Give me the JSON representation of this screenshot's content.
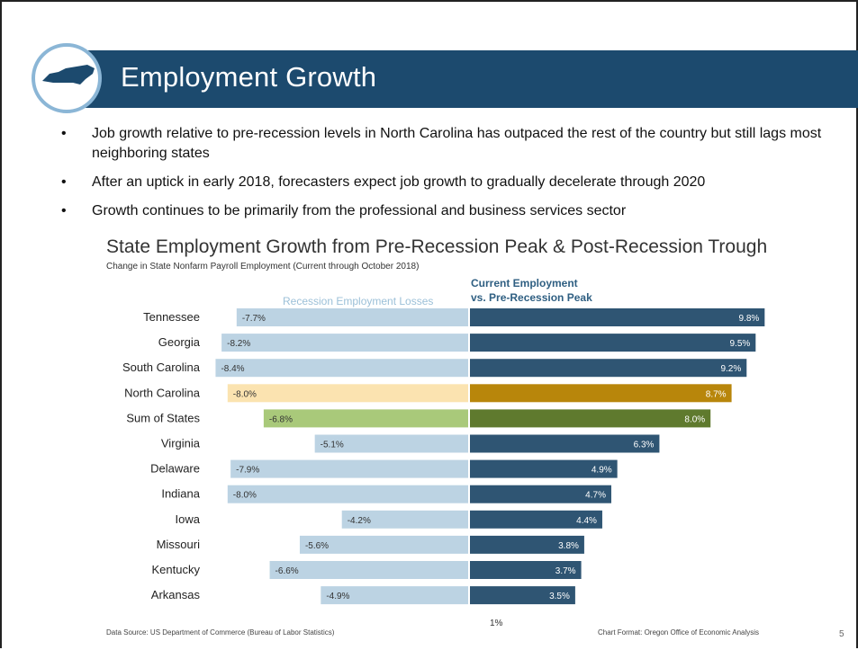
{
  "slide": {
    "title": "Employment Growth",
    "page_number": "5",
    "bullets": [
      "Job growth relative to pre-recession levels in North Carolina has outpaced the rest of the country but still lags most neighboring states",
      "After an uptick in early 2018, forecasters expect job growth to gradually decelerate through 2020",
      "Growth continues to be primarily from the professional and business services sector"
    ],
    "bullet_symbol": "•",
    "logo_icon": "north-carolina-state-icon"
  },
  "chart_data": {
    "type": "bar",
    "title": "State Employment Growth from Pre-Recession Peak & Post-Recession Trough",
    "subtitle": "Change in State Nonfarm Payroll Employment (Current through October 2018)",
    "left_header": "Recession Employment Losses",
    "right_header_line1": "Current Employment",
    "right_header_line2": "vs. Pre-Recession Peak",
    "categories": [
      "Tennessee",
      "Georgia",
      "South Carolina",
      "North Carolina",
      "Sum of States",
      "Virginia",
      "Delaware",
      "Indiana",
      "Iowa",
      "Missouri",
      "Kentucky",
      "Arkansas"
    ],
    "series": [
      {
        "name": "Recession Employment Losses",
        "values": [
          -7.7,
          -8.2,
          -8.4,
          -8.0,
          -6.8,
          -5.1,
          -7.9,
          -8.0,
          -4.2,
          -5.6,
          -6.6,
          -4.9
        ],
        "labels": [
          "-7.7%",
          "-8.2%",
          "-8.4%",
          "-8.0%",
          "-6.8%",
          "-5.1%",
          "-7.9%",
          "-8.0%",
          "-4.2%",
          "-5.6%",
          "-6.6%",
          "-4.9%"
        ]
      },
      {
        "name": "Current Employment vs. Pre-Recession Peak",
        "values": [
          9.8,
          9.5,
          9.2,
          8.7,
          8.0,
          6.3,
          4.9,
          4.7,
          4.4,
          3.8,
          3.7,
          3.5
        ],
        "labels": [
          "9.8%",
          "9.5%",
          "9.2%",
          "8.7%",
          "8.0%",
          "6.3%",
          "4.9%",
          "4.7%",
          "4.4%",
          "3.8%",
          "3.7%",
          "3.5%"
        ]
      }
    ],
    "highlight": {
      "North Carolina": {
        "left": "#fbe3b0",
        "right": "#b8860b"
      },
      "Sum of States": {
        "left": "#a9c97a",
        "right": "#5f7a2e"
      }
    },
    "colors": {
      "left": "#bcd3e3",
      "right": "#2f5573",
      "left_label": "#333333",
      "right_label": "#ffffff"
    },
    "axis_tick_label": "1%",
    "source": "Data Source: US Department of Commerce (Bureau of Labor Statistics)",
    "credit": "Chart Format: Oregon Office of Economic Analysis"
  }
}
